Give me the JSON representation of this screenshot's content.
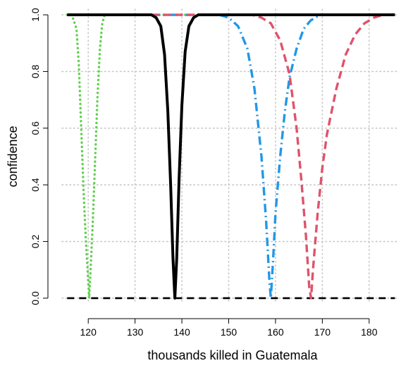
{
  "chart_data": {
    "type": "line",
    "title": "",
    "xlabel": "thousands killed in Guatemala",
    "ylabel": "confidence",
    "xlim": [
      114.4,
      186.2
    ],
    "ylim": [
      -0.02,
      1.02
    ],
    "xticks": [
      120,
      130,
      140,
      150,
      160,
      170,
      180
    ],
    "xtick_labels": [
      "120",
      "130",
      "140",
      "150",
      "160",
      "170",
      "180"
    ],
    "yticks": [
      0.0,
      0.2,
      0.4,
      0.6,
      0.8,
      1.0
    ],
    "ytick_labels": [
      "0.0",
      "0.2",
      "0.4",
      "0.6",
      "0.8",
      "1.0"
    ],
    "grid": true,
    "horizontal_reference_line": {
      "y": 0.0,
      "color": "#000000",
      "dash": "dashed"
    },
    "series": [
      {
        "color": "#61D04F",
        "style": "dotted",
        "x": [
          115.5,
          116.5,
          117.5,
          118.0,
          118.5,
          119.0,
          119.5,
          120.0,
          120.2,
          120.5,
          121.0,
          121.5,
          122.0,
          122.5,
          123.0,
          123.5,
          124.0,
          185.5
        ],
        "y": [
          1.0,
          1.0,
          0.95,
          0.82,
          0.6,
          0.38,
          0.2,
          0.06,
          0.0,
          0.1,
          0.28,
          0.5,
          0.72,
          0.88,
          0.97,
          1.0,
          1.0,
          1.0
        ]
      },
      {
        "color": "#2297E6",
        "style": "dashdot",
        "x": [
          115.5,
          148.0,
          150.0,
          152.0,
          154.0,
          155.5,
          157.0,
          158.0,
          158.7,
          159.0,
          159.5,
          160.0,
          161.0,
          162.0,
          163.0,
          164.5,
          166.0,
          167.5,
          169.5,
          171.0,
          185.5
        ],
        "y": [
          1.0,
          1.0,
          0.99,
          0.96,
          0.88,
          0.74,
          0.5,
          0.27,
          0.06,
          0.0,
          0.14,
          0.3,
          0.5,
          0.66,
          0.78,
          0.88,
          0.95,
          0.98,
          1.0,
          1.0,
          1.0
        ]
      },
      {
        "color": "#DF536B",
        "style": "dashed",
        "x": [
          115.5,
          155.0,
          157.0,
          159.0,
          161.0,
          163.0,
          164.5,
          165.5,
          166.5,
          167.2,
          167.6,
          168.0,
          169.0,
          170.0,
          171.0,
          173.0,
          175.0,
          177.0,
          179.0,
          181.0,
          183.0,
          185.5
        ],
        "y": [
          1.0,
          1.0,
          0.99,
          0.97,
          0.91,
          0.79,
          0.6,
          0.42,
          0.22,
          0.04,
          0.0,
          0.1,
          0.3,
          0.46,
          0.58,
          0.74,
          0.86,
          0.93,
          0.97,
          0.99,
          1.0,
          1.0
        ]
      },
      {
        "color": "#000000",
        "style": "solid",
        "x": [
          115.5,
          133.5,
          134.5,
          135.5,
          136.3,
          137.0,
          137.6,
          138.1,
          138.5,
          138.9,
          139.4,
          140.0,
          140.7,
          141.5,
          142.5,
          143.5,
          185.5
        ],
        "y": [
          1.0,
          1.0,
          0.99,
          0.96,
          0.86,
          0.66,
          0.4,
          0.14,
          0.0,
          0.14,
          0.42,
          0.68,
          0.87,
          0.96,
          0.99,
          1.0,
          1.0
        ]
      }
    ]
  }
}
